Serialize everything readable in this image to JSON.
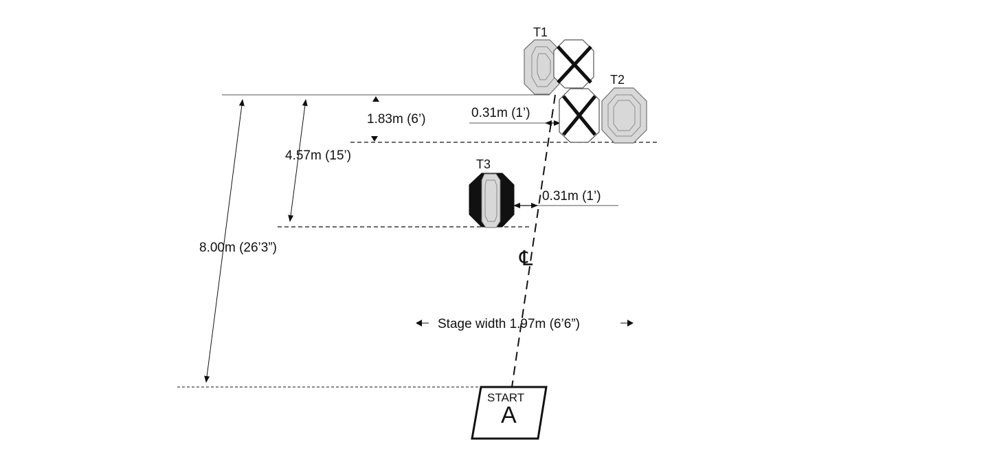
{
  "diagram": {
    "targets": {
      "t1": "T1",
      "t2": "T2",
      "t3": "T3"
    },
    "dimensions": {
      "d_1_83": "1.83m (6’)",
      "d_4_57": "4.57m (15’)",
      "d_8_00": "8.00m (26’3”)",
      "offset_top": "0.31m (1’)",
      "offset_t3": "0.31m (1’)",
      "stage_width": "Stage width 1.97m (6’6”)"
    },
    "centerline": "℄",
    "start": {
      "label": "START",
      "letter": "A"
    },
    "colors": {
      "line": "#111111",
      "target_fill": "#d8d8d8",
      "target_edge": "#6f6f6f",
      "no_shoot_fill": "#ffffff",
      "black_hardcover": "#111111"
    }
  }
}
